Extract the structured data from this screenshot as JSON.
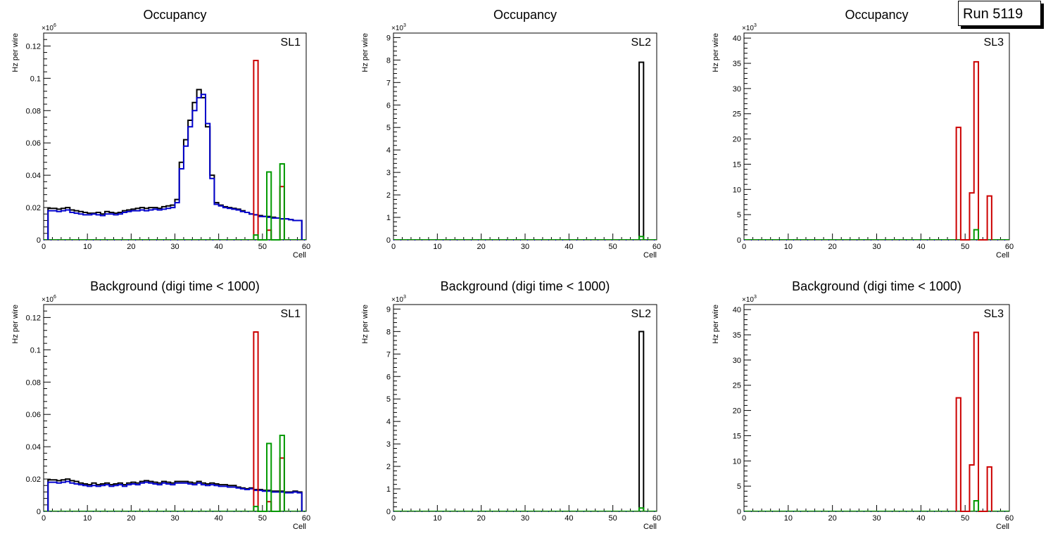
{
  "run_label": "Run 5119",
  "colors": {
    "black": "#000000",
    "red": "#cc0000",
    "green": "#009900",
    "blue": "#0000cc"
  },
  "chart_data": [
    {
      "type": "bar",
      "title": "Occupancy",
      "label": "SL1",
      "xlabel": "Cell",
      "ylabel": "Hz per wire",
      "multiplier": "×10^6",
      "xlim": [
        0,
        60
      ],
      "ylim": [
        0,
        0.128
      ],
      "xticks": [
        0,
        10,
        20,
        30,
        40,
        50,
        60
      ],
      "yticks": [
        0,
        0.02,
        0.04,
        0.06,
        0.08,
        0.1,
        0.12
      ],
      "ytick_labels": [
        "0",
        "0.02",
        "0.04",
        "0.06",
        "0.08",
        "0.1",
        "0.12"
      ],
      "series": [
        {
          "name": "black",
          "color": "#000000",
          "x0": 1,
          "values": [
            0.0195,
            0.0195,
            0.019,
            0.0195,
            0.02,
            0.0185,
            0.018,
            0.0175,
            0.017,
            0.0165,
            0.0165,
            0.017,
            0.016,
            0.0175,
            0.017,
            0.0165,
            0.017,
            0.018,
            0.0185,
            0.019,
            0.0195,
            0.02,
            0.0195,
            0.02,
            0.02,
            0.0195,
            0.0205,
            0.021,
            0.0215,
            0.025,
            0.048,
            0.062,
            0.074,
            0.085,
            0.093,
            0.088,
            0.07,
            0.04,
            0.023,
            0.0215,
            0.0205,
            0.02,
            0.0195,
            0.019,
            0.018,
            0.017,
            0.016,
            0.0155,
            0.015,
            0.0145,
            0.0145,
            0.014,
            0.0135,
            0.013,
            0.013,
            0.0125,
            0.012,
            0.012
          ]
        },
        {
          "name": "blue",
          "color": "#0000cc",
          "x0": 1,
          "values": [
            0.018,
            0.018,
            0.0175,
            0.018,
            0.0185,
            0.017,
            0.0165,
            0.016,
            0.0155,
            0.0155,
            0.016,
            0.0155,
            0.015,
            0.016,
            0.016,
            0.0155,
            0.016,
            0.017,
            0.0175,
            0.018,
            0.018,
            0.0185,
            0.018,
            0.0185,
            0.019,
            0.0185,
            0.019,
            0.0195,
            0.02,
            0.023,
            0.044,
            0.058,
            0.07,
            0.08,
            0.088,
            0.09,
            0.072,
            0.038,
            0.022,
            0.021,
            0.02,
            0.0195,
            0.019,
            0.0185,
            0.0175,
            0.017,
            0.016,
            0.0155,
            0.0145,
            0.0145,
            0.014,
            0.0135,
            0.0135,
            0.013,
            0.013,
            0.0125,
            0.012,
            0.012
          ]
        },
        {
          "name": "red",
          "color": "#cc0000",
          "x0": 48,
          "values": [
            0.111,
            0,
            0,
            0.006,
            0,
            0,
            0.033
          ]
        },
        {
          "name": "green",
          "color": "#009900",
          "x0": 48,
          "values": [
            0.003,
            0,
            0,
            0.042,
            0,
            0,
            0.047
          ]
        }
      ]
    },
    {
      "type": "bar",
      "title": "Occupancy",
      "label": "SL2",
      "xlabel": "Cell",
      "ylabel": "Hz per wire",
      "multiplier": "×10^3",
      "xlim": [
        0,
        60
      ],
      "ylim": [
        0,
        9.2
      ],
      "xticks": [
        0,
        10,
        20,
        30,
        40,
        50,
        60
      ],
      "yticks": [
        0,
        1,
        2,
        3,
        4,
        5,
        6,
        7,
        8,
        9
      ],
      "ytick_labels": [
        "0",
        "1",
        "2",
        "3",
        "4",
        "5",
        "6",
        "7",
        "8",
        "9"
      ],
      "series": [
        {
          "name": "black",
          "color": "#000000",
          "x0": 56,
          "values": [
            7.9
          ]
        },
        {
          "name": "green",
          "color": "#009900",
          "x0": 56,
          "values": [
            0.15
          ]
        }
      ]
    },
    {
      "type": "bar",
      "title": "Occupancy",
      "label": "SL3",
      "xlabel": "Cell",
      "ylabel": "Hz per wire",
      "multiplier": "×10^3",
      "xlim": [
        0,
        60
      ],
      "ylim": [
        0,
        41
      ],
      "xticks": [
        0,
        10,
        20,
        30,
        40,
        50,
        60
      ],
      "yticks": [
        0,
        5,
        10,
        15,
        20,
        25,
        30,
        35,
        40
      ],
      "ytick_labels": [
        "0",
        "5",
        "10",
        "15",
        "20",
        "25",
        "30",
        "35",
        "40"
      ],
      "series": [
        {
          "name": "red",
          "color": "#cc0000",
          "x0": 48,
          "values": [
            22.3,
            0,
            0,
            9.3,
            35.3,
            0,
            0,
            8.7
          ]
        },
        {
          "name": "green",
          "color": "#009900",
          "x0": 52,
          "values": [
            2.0
          ]
        }
      ]
    },
    {
      "type": "bar",
      "title": "Background (digi time < 1000)",
      "label": "SL1",
      "xlabel": "Cell",
      "ylabel": "Hz per wire",
      "multiplier": "×10^6",
      "xlim": [
        0,
        60
      ],
      "ylim": [
        0,
        0.128
      ],
      "xticks": [
        0,
        10,
        20,
        30,
        40,
        50,
        60
      ],
      "yticks": [
        0,
        0.02,
        0.04,
        0.06,
        0.08,
        0.1,
        0.12
      ],
      "ytick_labels": [
        "0",
        "0.02",
        "0.04",
        "0.06",
        "0.08",
        "0.1",
        "0.12"
      ],
      "series": [
        {
          "name": "black",
          "color": "#000000",
          "x0": 1,
          "values": [
            0.0195,
            0.0195,
            0.019,
            0.0195,
            0.02,
            0.019,
            0.0185,
            0.0175,
            0.017,
            0.0165,
            0.0175,
            0.0165,
            0.017,
            0.0175,
            0.0165,
            0.017,
            0.0175,
            0.0165,
            0.0175,
            0.018,
            0.0175,
            0.0185,
            0.019,
            0.0185,
            0.018,
            0.0175,
            0.0185,
            0.018,
            0.0175,
            0.0185,
            0.0185,
            0.0185,
            0.018,
            0.0175,
            0.0185,
            0.0175,
            0.017,
            0.0175,
            0.017,
            0.0165,
            0.0165,
            0.016,
            0.016,
            0.015,
            0.0145,
            0.014,
            0.0145,
            0.0135,
            0.0135,
            0.013,
            0.013,
            0.0125,
            0.0125,
            0.0125,
            0.012,
            0.012,
            0.0125,
            0.012
          ]
        },
        {
          "name": "blue",
          "color": "#0000cc",
          "x0": 1,
          "values": [
            0.018,
            0.018,
            0.0175,
            0.018,
            0.0185,
            0.0175,
            0.017,
            0.0165,
            0.016,
            0.0155,
            0.016,
            0.0155,
            0.016,
            0.0165,
            0.0155,
            0.016,
            0.0165,
            0.0155,
            0.0165,
            0.017,
            0.0165,
            0.0175,
            0.018,
            0.0175,
            0.017,
            0.0165,
            0.0175,
            0.017,
            0.0165,
            0.0175,
            0.0175,
            0.0175,
            0.017,
            0.0165,
            0.0175,
            0.0165,
            0.016,
            0.0165,
            0.016,
            0.0155,
            0.0155,
            0.015,
            0.015,
            0.0145,
            0.014,
            0.0135,
            0.014,
            0.013,
            0.013,
            0.0125,
            0.0125,
            0.012,
            0.012,
            0.012,
            0.0115,
            0.0115,
            0.012,
            0.0115
          ]
        },
        {
          "name": "red",
          "color": "#cc0000",
          "x0": 48,
          "values": [
            0.111,
            0,
            0,
            0.006,
            0,
            0,
            0.033
          ]
        },
        {
          "name": "green",
          "color": "#009900",
          "x0": 48,
          "values": [
            0.003,
            0,
            0,
            0.042,
            0,
            0,
            0.047
          ]
        }
      ]
    },
    {
      "type": "bar",
      "title": "Background (digi time < 1000)",
      "label": "SL2",
      "xlabel": "Cell",
      "ylabel": "Hz per wire",
      "multiplier": "×10^3",
      "xlim": [
        0,
        60
      ],
      "ylim": [
        0,
        9.2
      ],
      "xticks": [
        0,
        10,
        20,
        30,
        40,
        50,
        60
      ],
      "yticks": [
        0,
        1,
        2,
        3,
        4,
        5,
        6,
        7,
        8,
        9
      ],
      "ytick_labels": [
        "0",
        "1",
        "2",
        "3",
        "4",
        "5",
        "6",
        "7",
        "8",
        "9"
      ],
      "series": [
        {
          "name": "black",
          "color": "#000000",
          "x0": 56,
          "values": [
            8.0
          ]
        },
        {
          "name": "green",
          "color": "#009900",
          "x0": 56,
          "values": [
            0.15
          ]
        }
      ]
    },
    {
      "type": "bar",
      "title": "Background (digi time < 1000)",
      "label": "SL3",
      "xlabel": "Cell",
      "ylabel": "Hz per wire",
      "multiplier": "×10^3",
      "xlim": [
        0,
        60
      ],
      "ylim": [
        0,
        41
      ],
      "xticks": [
        0,
        10,
        20,
        30,
        40,
        50,
        60
      ],
      "yticks": [
        0,
        5,
        10,
        15,
        20,
        25,
        30,
        35,
        40
      ],
      "ytick_labels": [
        "0",
        "5",
        "10",
        "15",
        "20",
        "25",
        "30",
        "35",
        "40"
      ],
      "series": [
        {
          "name": "red",
          "color": "#cc0000",
          "x0": 48,
          "values": [
            22.5,
            0,
            0,
            9.2,
            35.5,
            0,
            0,
            8.8
          ]
        },
        {
          "name": "green",
          "color": "#009900",
          "x0": 52,
          "values": [
            2.1
          ]
        }
      ]
    }
  ]
}
